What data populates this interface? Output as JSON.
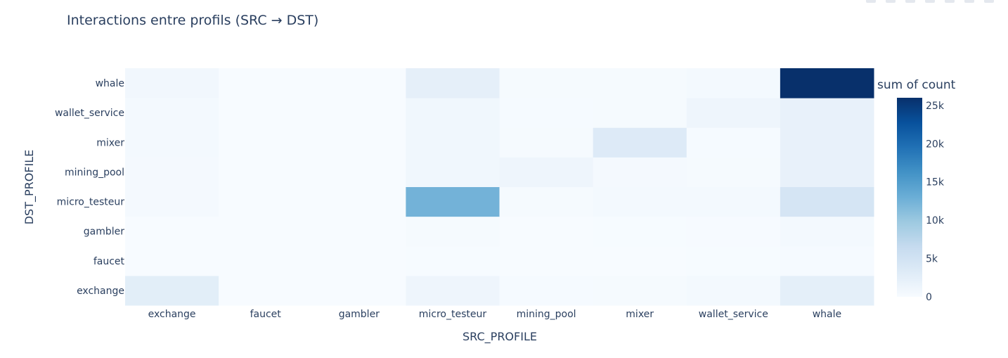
{
  "chart_data": {
    "type": "heatmap",
    "title": "Interactions entre profils (SRC → DST)",
    "xlabel": "SRC_PROFILE",
    "ylabel": "DST_PROFILE",
    "x_categories": [
      "exchange",
      "faucet",
      "gambler",
      "micro_testeur",
      "mining_pool",
      "mixer",
      "wallet_service",
      "whale"
    ],
    "y_categories": [
      "exchange",
      "faucet",
      "gambler",
      "micro_testeur",
      "mining_pool",
      "mixer",
      "wallet_service",
      "whale"
    ],
    "z": [
      [
        2700,
        30,
        20,
        1200,
        200,
        300,
        500,
        2500
      ],
      [
        20,
        0,
        0,
        100,
        30,
        50,
        80,
        200
      ],
      [
        50,
        0,
        30,
        300,
        60,
        100,
        120,
        500
      ],
      [
        400,
        10,
        20,
        12500,
        300,
        500,
        500,
        4500
      ],
      [
        400,
        10,
        20,
        900,
        1200,
        400,
        300,
        2000
      ],
      [
        500,
        10,
        20,
        900,
        300,
        3400,
        200,
        2000
      ],
      [
        500,
        20,
        20,
        900,
        200,
        300,
        1200,
        2000
      ],
      [
        800,
        20,
        50,
        2400,
        300,
        300,
        500,
        26000
      ]
    ],
    "colorbar": {
      "title": "sum of count",
      "tick_labels": [
        "0",
        "5k",
        "10k",
        "15k",
        "20k",
        "25k"
      ],
      "tick_values": [
        0,
        5000,
        10000,
        15000,
        20000,
        25000
      ],
      "zmin": 0,
      "zmax": 26000
    },
    "colorscale": [
      "#f7fbff",
      "#deebf7",
      "#c6dbef",
      "#9ecae1",
      "#6baed6",
      "#4292c6",
      "#2171b5",
      "#08519c",
      "#08306b"
    ]
  }
}
